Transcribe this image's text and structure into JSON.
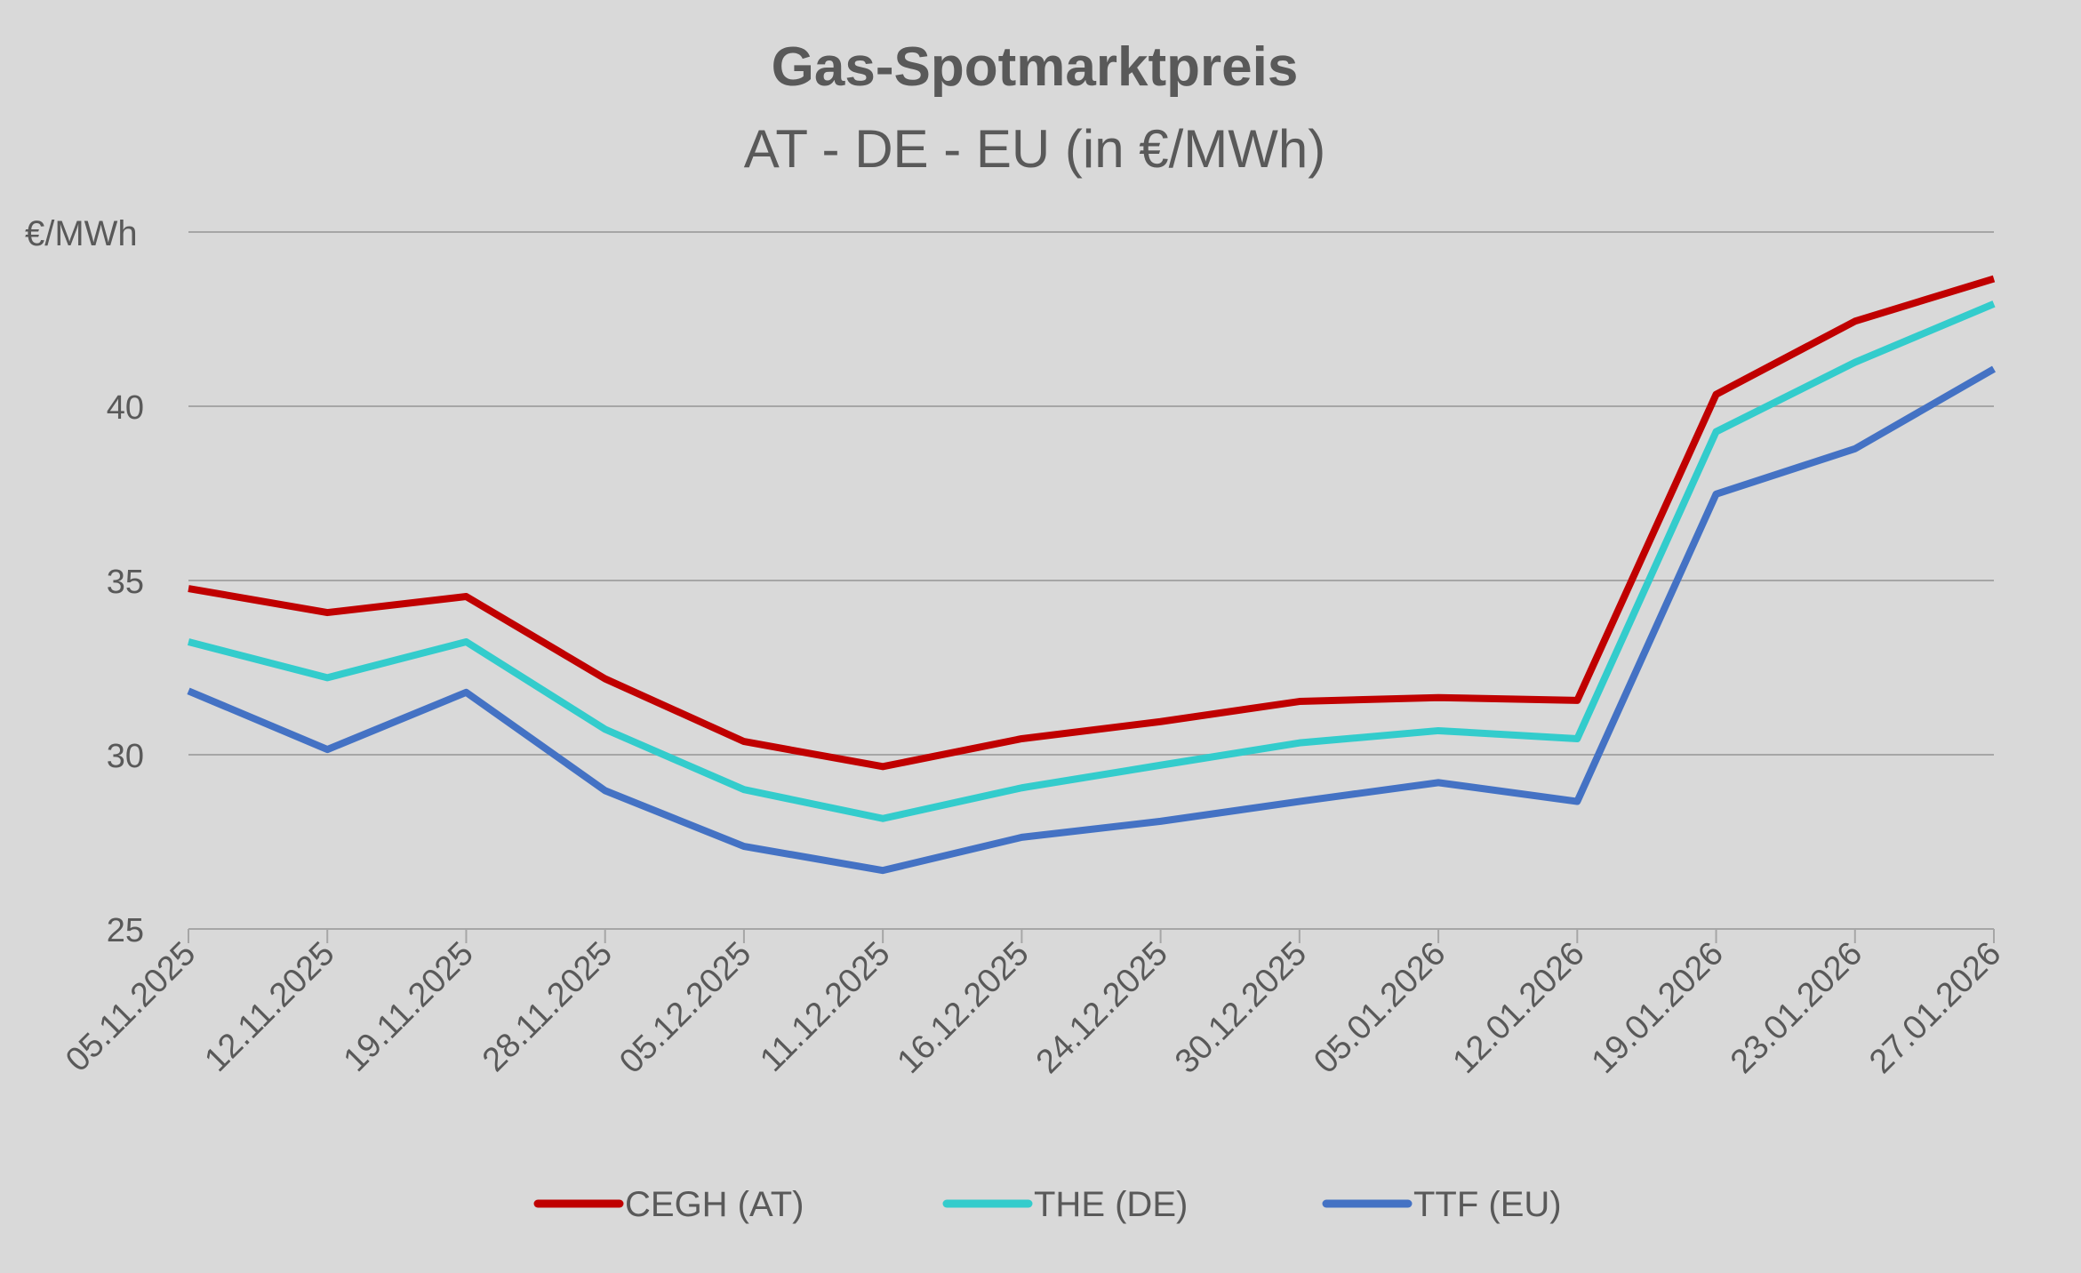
{
  "chart_data": {
    "type": "line",
    "title": "Gas-Spotmarktpreis",
    "subtitle": "AT - DE - EU (in €/MWh)",
    "ylabel": "€/MWh",
    "xlabel": "",
    "ylim": [
      25,
      45
    ],
    "yticks": [
      25,
      30,
      35,
      40
    ],
    "grid": true,
    "legend_position": "bottom",
    "categories": [
      "05.11.2025",
      "12.11.2025",
      "19.11.2025",
      "28.11.2025",
      "05.12.2025",
      "11.12.2025",
      "16.12.2025",
      "24.12.2025",
      "30.12.2025",
      "05.01.2026",
      "12.01.2026",
      "19.01.2026",
      "23.01.2026",
      "27.01.2026"
    ],
    "series": [
      {
        "name": "CEGH (AT)",
        "color": "#c00000",
        "values": [
          34.77,
          34.08,
          34.54,
          32.18,
          30.38,
          29.66,
          30.46,
          30.95,
          31.53,
          31.64,
          31.56,
          40.34,
          42.44,
          43.66
        ]
      },
      {
        "name": "THE (DE)",
        "color": "#33cccc",
        "values": [
          33.24,
          32.21,
          33.24,
          30.73,
          29.0,
          28.17,
          29.05,
          29.7,
          30.34,
          30.69,
          30.46,
          39.27,
          41.26,
          42.94
        ]
      },
      {
        "name": "TTF (EU)",
        "color": "#4472c4",
        "values": [
          31.83,
          30.15,
          31.79,
          28.97,
          27.37,
          26.68,
          27.63,
          28.09,
          28.66,
          29.2,
          28.66,
          37.48,
          38.78,
          41.07
        ]
      }
    ]
  }
}
